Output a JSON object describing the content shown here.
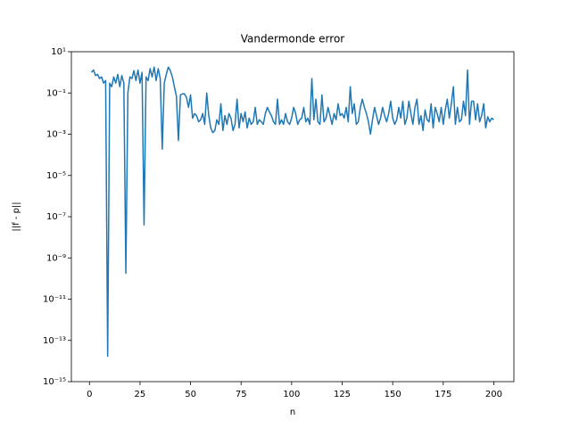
{
  "chart_data": {
    "type": "line",
    "title": "Vandermonde error",
    "xlabel": "n",
    "ylabel": "||f - p||",
    "log_y": true,
    "grid": false,
    "xlim": [
      -8.95,
      209.95
    ],
    "xticks": [
      0,
      25,
      50,
      75,
      100,
      125,
      150,
      175,
      200
    ],
    "ylim": [
      1e-15,
      10
    ],
    "yticks": [
      {
        "value": 10,
        "label": "10¹"
      },
      {
        "value": 0.1,
        "label": "10⁻¹"
      },
      {
        "value": 0.001,
        "label": "10⁻³"
      },
      {
        "value": 1e-05,
        "label": "10⁻⁵"
      },
      {
        "value": 1e-07,
        "label": "10⁻⁷"
      },
      {
        "value": 1e-09,
        "label": "10⁻⁹"
      },
      {
        "value": 1e-11,
        "label": "10⁻¹¹"
      },
      {
        "value": 1e-13,
        "label": "10⁻¹³"
      },
      {
        "value": 1e-15,
        "label": "10⁻¹⁵"
      }
    ],
    "x": [
      1,
      2,
      3,
      4,
      5,
      6,
      7,
      8,
      9,
      10,
      11,
      12,
      13,
      14,
      15,
      16,
      17,
      18,
      19,
      20,
      21,
      22,
      23,
      24,
      25,
      26,
      27,
      28,
      29,
      30,
      31,
      32,
      33,
      34,
      35,
      36,
      37,
      38,
      39,
      40,
      41,
      42,
      43,
      44,
      45,
      46,
      47,
      48,
      49,
      50,
      51,
      52,
      53,
      54,
      55,
      56,
      57,
      58,
      59,
      60,
      61,
      62,
      63,
      64,
      65,
      66,
      67,
      68,
      69,
      70,
      71,
      72,
      73,
      74,
      75,
      76,
      77,
      78,
      79,
      80,
      81,
      82,
      83,
      84,
      85,
      86,
      87,
      88,
      89,
      90,
      91,
      92,
      93,
      94,
      95,
      96,
      97,
      98,
      99,
      100,
      101,
      102,
      103,
      104,
      105,
      106,
      107,
      108,
      109,
      110,
      111,
      112,
      113,
      114,
      115,
      116,
      117,
      118,
      119,
      120,
      121,
      122,
      123,
      124,
      125,
      126,
      127,
      128,
      129,
      130,
      131,
      132,
      133,
      134,
      135,
      136,
      137,
      138,
      139,
      140,
      141,
      142,
      143,
      144,
      145,
      146,
      147,
      148,
      149,
      150,
      151,
      152,
      153,
      154,
      155,
      156,
      157,
      158,
      159,
      160,
      161,
      162,
      163,
      164,
      165,
      166,
      167,
      168,
      169,
      170,
      171,
      172,
      173,
      174,
      175,
      176,
      177,
      178,
      179,
      180,
      181,
      182,
      183,
      184,
      185,
      186,
      187,
      188,
      189,
      190,
      191,
      192,
      193,
      194,
      195,
      196,
      197,
      198,
      199,
      200
    ],
    "series": [
      {
        "color": "#1f77b4",
        "values": [
          1.0,
          1.3,
          0.7,
          0.8,
          0.5,
          0.6,
          0.3,
          0.4,
          1.7e-14,
          0.3,
          0.2,
          0.6,
          0.3,
          0.8,
          0.2,
          0.7,
          0.3,
          1.8e-10,
          0.1,
          0.6,
          0.5,
          1.2,
          0.4,
          1.3,
          0.3,
          1.0,
          4e-08,
          0.6,
          0.4,
          1.5,
          0.6,
          1.8,
          0.4,
          1.5,
          0.5,
          0.00019,
          0.3,
          0.8,
          1.8,
          1.2,
          0.6,
          0.2,
          0.07,
          0.0005,
          0.08,
          0.09,
          0.09,
          0.06,
          0.02,
          0.08,
          0.006,
          0.01,
          0.008,
          0.004,
          0.005,
          0.01,
          0.003,
          0.1,
          0.008,
          0.002,
          0.0012,
          0.0015,
          0.005,
          0.003,
          0.03,
          0.0015,
          0.008,
          0.003,
          0.01,
          0.006,
          0.0015,
          0.003,
          0.05,
          0.002,
          0.01,
          0.004,
          0.012,
          0.002,
          0.006,
          0.003,
          0.004,
          0.02,
          0.003,
          0.005,
          0.004,
          0.003,
          0.01,
          0.02,
          0.012,
          0.008,
          0.004,
          0.003,
          0.05,
          0.003,
          0.005,
          0.003,
          0.01,
          0.004,
          0.003,
          0.006,
          0.02,
          0.01,
          0.003,
          0.005,
          0.006,
          0.02,
          0.004,
          0.006,
          0.003,
          0.5,
          0.005,
          0.05,
          0.004,
          0.003,
          0.08,
          0.004,
          0.006,
          0.02,
          0.008,
          0.003,
          0.01,
          0.005,
          0.03,
          0.008,
          0.01,
          0.006,
          0.02,
          0.004,
          0.2,
          0.01,
          0.03,
          0.003,
          0.004,
          0.02,
          0.05,
          0.02,
          0.01,
          0.004,
          0.001,
          0.005,
          0.02,
          0.008,
          0.003,
          0.006,
          0.02,
          0.008,
          0.004,
          0.01,
          0.04,
          0.006,
          0.003,
          0.005,
          0.02,
          0.006,
          0.04,
          0.003,
          0.006,
          0.04,
          0.01,
          0.003,
          0.02,
          0.05,
          0.003,
          0.008,
          0.0015,
          0.015,
          0.005,
          0.004,
          0.03,
          0.002,
          0.02,
          0.01,
          0.004,
          0.02,
          0.003,
          0.015,
          0.05,
          0.006,
          0.03,
          0.2,
          0.003,
          0.02,
          0.004,
          0.005,
          0.04,
          0.008,
          1.3,
          0.003,
          0.04,
          0.04,
          0.005,
          0.03,
          0.004,
          0.008,
          0.03,
          0.002,
          0.007,
          0.004,
          0.006,
          0.005
        ]
      }
    ]
  }
}
